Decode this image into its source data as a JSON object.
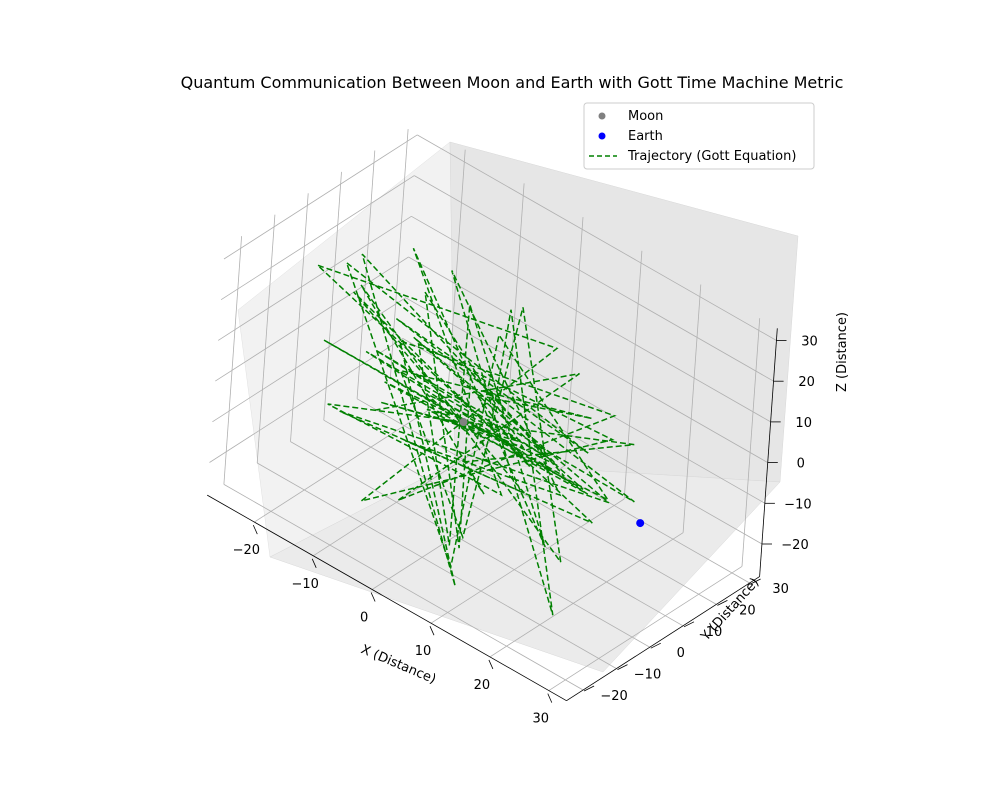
{
  "chart_data": {
    "type": "scatter",
    "title": "Quantum Communication Between Moon and Earth with Gott Time Machine Metric",
    "xlabel": "X (Distance)",
    "ylabel": "Y (Distance)",
    "zlabel": "Z (Distance)",
    "xlim": [
      -28,
      33
    ],
    "ylim": [
      -25,
      33
    ],
    "zlim": [
      -28,
      33
    ],
    "xticks": [
      "−20",
      "−10",
      "0",
      "10",
      "20",
      "30"
    ],
    "yticks": [
      "−20",
      "−10",
      "0",
      "10",
      "20",
      "30"
    ],
    "zticks": [
      "−20",
      "−10",
      "0",
      "10",
      "20",
      "30"
    ],
    "grid": true,
    "legend_position": "upper-right",
    "legend": [
      {
        "label": "Moon",
        "marker": "dot",
        "color": "#808080"
      },
      {
        "label": "Earth",
        "marker": "dot",
        "color": "#0000ff"
      },
      {
        "label": "Trajectory (Gott Equation)",
        "marker": "dashed-line",
        "color": "#008000"
      }
    ],
    "points": [
      {
        "name": "Moon",
        "x": 0,
        "y": 0,
        "z": 0,
        "color": "#808080"
      },
      {
        "name": "Earth",
        "x": 30,
        "y": 0,
        "z": 0,
        "color": "#0000ff"
      }
    ],
    "series": [
      {
        "name": "Trajectory (Gott Equation)",
        "color": "#008000",
        "style": "dashed",
        "x": [
          2,
          -4,
          6,
          -9,
          11,
          -14,
          8,
          -3,
          15,
          -18,
          12,
          -6,
          20,
          -11,
          4,
          -21,
          16,
          -8,
          23,
          -15,
          9,
          -2,
          18,
          -24,
          13,
          -7,
          25,
          -12,
          6,
          -19,
          21,
          -5,
          10,
          -16,
          24,
          -9,
          3,
          -22,
          17,
          -1,
          14,
          -13,
          22,
          -6,
          7,
          -20,
          19,
          -10,
          5,
          -17,
          26,
          -3,
          11,
          -23,
          15,
          -8,
          20,
          -14,
          2,
          -11,
          18,
          -4,
          9,
          -19,
          13,
          -16,
          23,
          -2,
          8,
          -12
        ],
        "y": [
          -3,
          5,
          -8,
          10,
          -2,
          12,
          -14,
          7,
          4,
          -11,
          16,
          -6,
          9,
          -18,
          13,
          3,
          -9,
          19,
          -4,
          8,
          -15,
          20,
          -1,
          11,
          -17,
          14,
          6,
          -20,
          2,
          17,
          -12,
          9,
          -21,
          15,
          1,
          -13,
          22,
          -7,
          10,
          -16,
          5,
          18,
          -10,
          24,
          -5,
          12,
          -19,
          7,
          -14,
          21,
          -3,
          15,
          -22,
          4,
          11,
          -8,
          17,
          -2,
          23,
          -11,
          6,
          -18,
          13,
          1,
          -24,
          9,
          3,
          -15,
          20,
          -6
        ],
        "z": [
          1,
          -6,
          9,
          -12,
          4,
          14,
          -17,
          6,
          -3,
          11,
          -15,
          19,
          -8,
          3,
          -21,
          13,
          7,
          -10,
          22,
          -4,
          -13,
          16,
          -19,
          8,
          2,
          -23,
          12,
          5,
          -14,
          18,
          -7,
          20,
          -11,
          -2,
          15,
          -20,
          9,
          24,
          -16,
          3,
          -9,
          17,
          -24,
          10,
          6,
          -18,
          21,
          -5,
          13,
          -22,
          4,
          11,
          -15,
          18,
          -1,
          23,
          -12,
          7,
          -19,
          14,
          -6,
          16,
          -10,
          25,
          -17,
          2,
          19,
          -13,
          8,
          -4
        ]
      }
    ]
  }
}
